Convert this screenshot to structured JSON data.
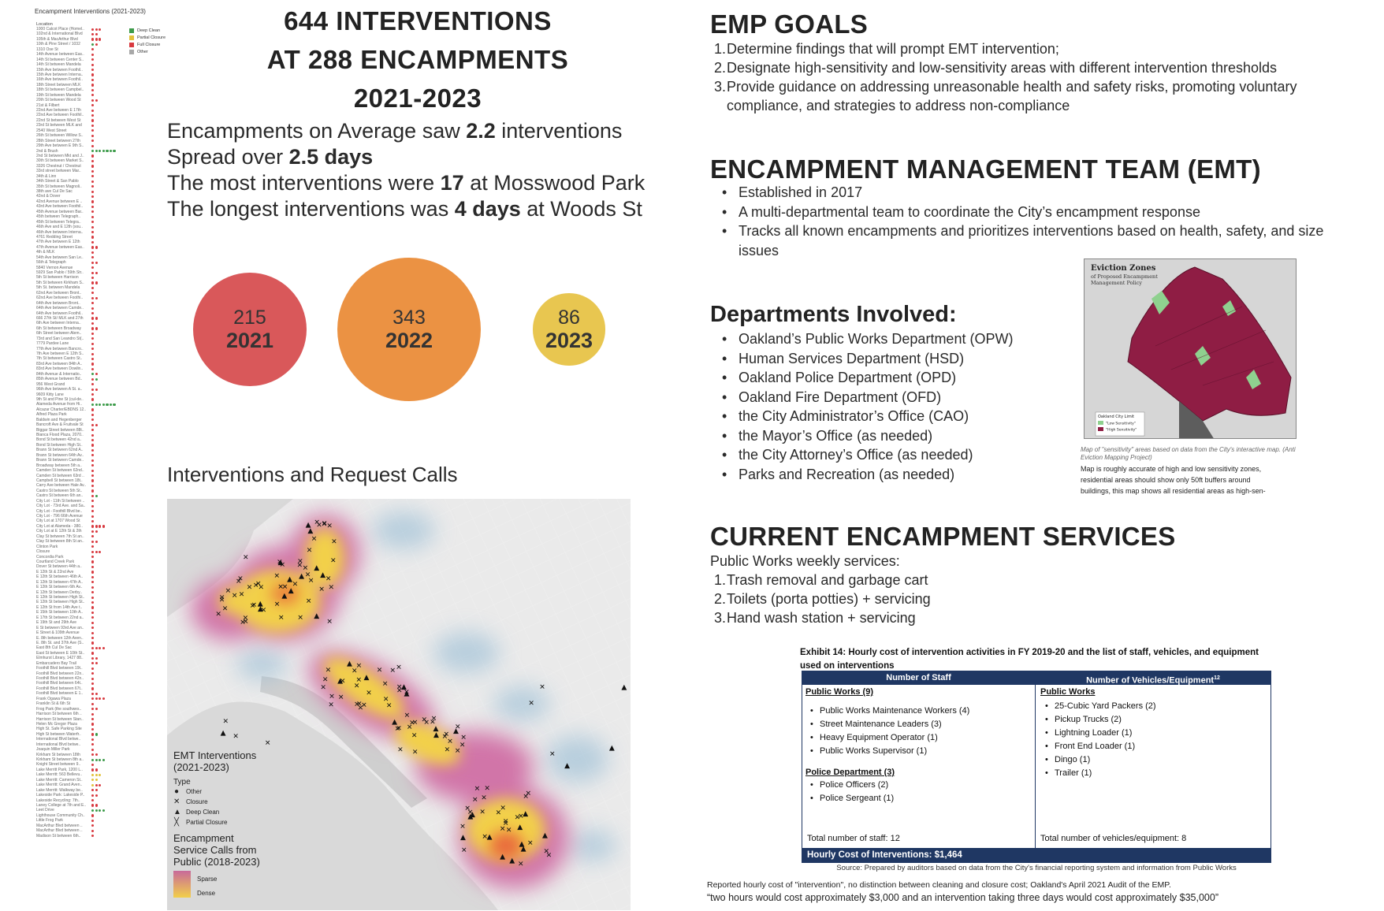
{
  "list_panel": {
    "title": "Encampment Interventions (2021-2023)",
    "column_header": "Location",
    "legend": [
      {
        "label": "Deep Clean",
        "color": "#3d9b4a"
      },
      {
        "label": "Partial Closure",
        "color": "#e2c23a"
      },
      {
        "label": "Full Closure",
        "color": "#d8393f"
      },
      {
        "label": "Other",
        "color": "#a8a8a8"
      }
    ],
    "rows": [
      {
        "name": "1000 Calcot Place (Homel..",
        "dots": "rrr"
      },
      {
        "name": "102nd & International Blvd",
        "dots": "rr"
      },
      {
        "name": "105th & MacArthur Blvd",
        "dots": "rrr"
      },
      {
        "name": "10th & Pine Street / 1032",
        "dots": "gr"
      },
      {
        "name": "1310 Ose St",
        "dots": "r"
      },
      {
        "name": "14th Avenue between Eas..",
        "dots": "r"
      },
      {
        "name": "14th St between Center S..",
        "dots": "r"
      },
      {
        "name": "14th St between Mandela",
        "dots": "r"
      },
      {
        "name": "15th Ave between Foothil..",
        "dots": "r"
      },
      {
        "name": "15th Ave between Interna..",
        "dots": "r"
      },
      {
        "name": "16th Ave between Foothil..",
        "dots": "r"
      },
      {
        "name": "18th Street between MLK",
        "dots": "r"
      },
      {
        "name": "18th St between Campbel..",
        "dots": "r"
      },
      {
        "name": "19th St between Mandela",
        "dots": "r"
      },
      {
        "name": "20th St between Wood St",
        "dots": "rr"
      },
      {
        "name": "21st & Filbert",
        "dots": "r"
      },
      {
        "name": "22nd Ave between E 17th",
        "dots": "r"
      },
      {
        "name": "22nd Ave between Foothil..",
        "dots": "r"
      },
      {
        "name": "22nd St between West St",
        "dots": "r"
      },
      {
        "name": "23rd St between MLK and",
        "dots": "r"
      },
      {
        "name": "2540 West Street",
        "dots": "r"
      },
      {
        "name": "26th St between Willow S..",
        "dots": "r"
      },
      {
        "name": "28th Street between 27th",
        "dots": "r"
      },
      {
        "name": "29th Ave between E 9th S..",
        "dots": "r"
      },
      {
        "name": "2nd & Brush",
        "dots": "ggggggg"
      },
      {
        "name": "2nd St between Mkt and J..",
        "dots": "r"
      },
      {
        "name": "30th St between Market S..",
        "dots": "r"
      },
      {
        "name": "3326 Chestnut / Chestnut",
        "dots": "r"
      },
      {
        "name": "33rd street between Mar..",
        "dots": "r"
      },
      {
        "name": "34th & Linn",
        "dots": "r"
      },
      {
        "name": "34th Street & San Pablo",
        "dots": "r"
      },
      {
        "name": "35th St between Magnoli..",
        "dots": "r"
      },
      {
        "name": "38th ave Cul De Sac",
        "dots": "r"
      },
      {
        "name": "42nd & Dover",
        "dots": "r"
      },
      {
        "name": "42nd Avenue between E ..",
        "dots": "r"
      },
      {
        "name": "43rd Ave between Foothil..",
        "dots": "r"
      },
      {
        "name": "45th Avenue between Bar..",
        "dots": "r"
      },
      {
        "name": "45th between Telegraph..",
        "dots": "r"
      },
      {
        "name": "45th St between Telegra..",
        "dots": "r"
      },
      {
        "name": "46th Ave and E 12th (sou..",
        "dots": "r"
      },
      {
        "name": "46th Ave between Interna..",
        "dots": "r"
      },
      {
        "name": "4761 Redding Street",
        "dots": "r"
      },
      {
        "name": "47th Ave between E 12th",
        "dots": "r"
      },
      {
        "name": "47th Avenue between Eas..",
        "dots": "rr"
      },
      {
        "name": "4th & MLK",
        "dots": "r"
      },
      {
        "name": "54th Ave between San Le..",
        "dots": "r"
      },
      {
        "name": "56th & Telegraph",
        "dots": "rr"
      },
      {
        "name": "5840 Vernon Avenue",
        "dots": "r"
      },
      {
        "name": "5929 San Pablo / 59th Str..",
        "dots": "rr"
      },
      {
        "name": "5th St between Harrison",
        "dots": "r"
      },
      {
        "name": "5th St between Kirkham S..",
        "dots": "rr"
      },
      {
        "name": "5th St. between Mandela",
        "dots": "r"
      },
      {
        "name": "62nd Ave between Bront..",
        "dots": "r"
      },
      {
        "name": "62nd Ave between Foothi..",
        "dots": "rr"
      },
      {
        "name": "64th Ave between Bront..",
        "dots": "r"
      },
      {
        "name": "64th Ave between Camde..",
        "dots": "r"
      },
      {
        "name": "64th Ave between Foothil..",
        "dots": "r"
      },
      {
        "name": "666 27th St/ MLK and 27th",
        "dots": "rr"
      },
      {
        "name": "6th Ave between Interna..",
        "dots": "r"
      },
      {
        "name": "6th St between Broadway",
        "dots": "rr"
      },
      {
        "name": "6th Street between Alem..",
        "dots": "r"
      },
      {
        "name": "73rd and San Leandro St(..",
        "dots": "r"
      },
      {
        "name": "7779 Pardee Lane",
        "dots": "r"
      },
      {
        "name": "77th Ave between Bancro..",
        "dots": "r"
      },
      {
        "name": "7th Ave between E 12th S..",
        "dots": "r"
      },
      {
        "name": "7th St between Castro St..",
        "dots": "r"
      },
      {
        "name": "83rd Ave between 84th A..",
        "dots": "r"
      },
      {
        "name": "83rd Ave between Dowlin..",
        "dots": "r"
      },
      {
        "name": "84th Avenue & Internatio..",
        "dots": "gr"
      },
      {
        "name": "85th Avenue between Bd..",
        "dots": "rg"
      },
      {
        "name": "956 West Grand",
        "dots": "r"
      },
      {
        "name": "96th Ave between A St. a..",
        "dots": "rr"
      },
      {
        "name": "9609 Kitty Lane",
        "dots": "r"
      },
      {
        "name": "9th St and Pine St (cul-de..",
        "dots": "r"
      },
      {
        "name": "Alameda Avenue from Hi..",
        "dots": "ggggggg"
      },
      {
        "name": "Alcazar Charter/EBDNS 12..",
        "dots": "r"
      },
      {
        "name": "Alfred Plaza Park",
        "dots": "r"
      },
      {
        "name": "Baldwin and Hegenberger",
        "dots": "r"
      },
      {
        "name": "Bancroft Ave & Fruitvale St",
        "dots": "rr"
      },
      {
        "name": "Biggar Street between 88t..",
        "dots": "r"
      },
      {
        "name": "Bianca Flood Plaza, 2070..",
        "dots": "r"
      },
      {
        "name": "Bond St between 42nd a..",
        "dots": "r"
      },
      {
        "name": "Bond St between High St..",
        "dots": "r"
      },
      {
        "name": "Brann St between 62nd A..",
        "dots": "r"
      },
      {
        "name": "Brann St between 64th Av..",
        "dots": "r"
      },
      {
        "name": "Brann St between Camde..",
        "dots": "r"
      },
      {
        "name": "Broadway between 5th a..",
        "dots": "r"
      },
      {
        "name": "Camden St between 62nd..",
        "dots": "r"
      },
      {
        "name": "Camden St between 63rd ..",
        "dots": "r"
      },
      {
        "name": "Campbell St between 18t..",
        "dots": "r"
      },
      {
        "name": "Carry Ave between Hale Av..",
        "dots": "r"
      },
      {
        "name": "Castro St between 5th St..",
        "dots": "r"
      },
      {
        "name": "Castro St between 6th an..",
        "dots": "rg"
      },
      {
        "name": "City Lot - 11th St between ..",
        "dots": "r"
      },
      {
        "name": "City Lot - 73rd Ave. and Sa..",
        "dots": "r"
      },
      {
        "name": "City Lot - Foothill Blvd be..",
        "dots": "r"
      },
      {
        "name": "City Lot - 796 66th Avenue",
        "dots": "r"
      },
      {
        "name": "City Lot at 1707 Wood St",
        "dots": "r"
      },
      {
        "name": "City Lot at Alameda - 380..",
        "dots": "rrrr"
      },
      {
        "name": "City Lot at E 12th St & 2th",
        "dots": "rr"
      },
      {
        "name": "Clay St between 7th St an..",
        "dots": "r"
      },
      {
        "name": "Clay St between 8th St an..",
        "dots": "rr"
      },
      {
        "name": "Clinton Park",
        "dots": "r"
      },
      {
        "name": "Closure",
        "dots": "rrr"
      },
      {
        "name": "Concordia Park",
        "dots": "r"
      },
      {
        "name": "Courtland Creek Park",
        "dots": "r"
      },
      {
        "name": "Dover St between 44th a..",
        "dots": "r"
      },
      {
        "name": "E 12th St & 22nd Ave",
        "dots": "r"
      },
      {
        "name": "E 12th St between 46th A..",
        "dots": "r"
      },
      {
        "name": "E 12th St between 47th A..",
        "dots": "r"
      },
      {
        "name": "E 12th St between 6th Av..",
        "dots": "r"
      },
      {
        "name": "E 12th St between Derby..",
        "dots": "r"
      },
      {
        "name": "E 12th St between High St..",
        "dots": "r"
      },
      {
        "name": "E 12th St between High St..",
        "dots": "r"
      },
      {
        "name": "E 12th St from 14th Ave t..",
        "dots": "r"
      },
      {
        "name": "E 15th St between 10th A..",
        "dots": "r"
      },
      {
        "name": "E 17th St between 22nd a..",
        "dots": "r"
      },
      {
        "name": "E 19th St and 29th Ave",
        "dots": "r"
      },
      {
        "name": "E St between 93rd Ave an..",
        "dots": "r"
      },
      {
        "name": "E Street & 109th Avenue",
        "dots": "r"
      },
      {
        "name": "E. 8th between 12th Aven..",
        "dots": "r"
      },
      {
        "name": "E. 8th St. and 37th Ave (S..",
        "dots": "r"
      },
      {
        "name": "East 8th Cul De Sac",
        "dots": "rrrr"
      },
      {
        "name": "East St between E 10th St..",
        "dots": "r"
      },
      {
        "name": "Elmhurst Library, 1427 88..",
        "dots": "rr"
      },
      {
        "name": "Embarcadero Bay Trail",
        "dots": "rr"
      },
      {
        "name": "Foothill Blvd between 19t..",
        "dots": "r"
      },
      {
        "name": "Foothill Blvd between 22n..",
        "dots": "r"
      },
      {
        "name": "Foothill Blvd between 42n..",
        "dots": "r"
      },
      {
        "name": "Foothill Blvd between 64t..",
        "dots": "r"
      },
      {
        "name": "Foothill Blvd between 67t..",
        "dots": "r"
      },
      {
        "name": "Foothill Blvd between E 1..",
        "dots": "rr"
      },
      {
        "name": "Frank Ogawa Plaza",
        "dots": "rrrr"
      },
      {
        "name": "Franklin St & 6th St",
        "dots": "r"
      },
      {
        "name": "Frog Park (the southwes..",
        "dots": "rr"
      },
      {
        "name": "Harrison St between 6th ..",
        "dots": "r"
      },
      {
        "name": "Harrison St between Stan..",
        "dots": "r"
      },
      {
        "name": "Helen Mc Gregor Plaza",
        "dots": "r"
      },
      {
        "name": "High St. Safe Parking Site",
        "dots": "r"
      },
      {
        "name": "High St between Waterfr..",
        "dots": "rg"
      },
      {
        "name": "International Blvd betwe..",
        "dots": "r"
      },
      {
        "name": "International Blvd betwe..",
        "dots": "r"
      },
      {
        "name": "Joaquin Miller Park",
        "dots": "r"
      },
      {
        "name": "Kirkham St between 18th",
        "dots": "rr"
      },
      {
        "name": "Kirkham St between 8th a..",
        "dots": "gggg"
      },
      {
        "name": "Knight Street between 9..",
        "dots": "r"
      },
      {
        "name": "Lake Merritt Park, 1200 L..",
        "dots": "rr"
      },
      {
        "name": "Lake Merritt: 563 Bellevu..",
        "dots": "yyy"
      },
      {
        "name": "Lake Merritt: Cameron St..",
        "dots": "yy"
      },
      {
        "name": "Lake Merritt: Grand Aven..",
        "dots": "yrr"
      },
      {
        "name": "Lake Merritt: Walkway be..",
        "dots": "rr"
      },
      {
        "name": "Lakeside Park: Lakeside P..",
        "dots": "rr"
      },
      {
        "name": "Lakeside Recycling: 7th..",
        "dots": "r"
      },
      {
        "name": "Laney College at 7th and E..",
        "dots": "rr"
      },
      {
        "name": "Leet Drive",
        "dots": "gggg"
      },
      {
        "name": "Lighthouse Community Ch..",
        "dots": "r"
      },
      {
        "name": "Little Frog Park",
        "dots": "r"
      },
      {
        "name": "MacArthur Blvd between ..",
        "dots": "r"
      },
      {
        "name": "MacArthur Blvd between ..",
        "dots": "r"
      },
      {
        "name": "Madison St between 6th..",
        "dots": "r"
      }
    ]
  },
  "headline": {
    "line1": "644 INTERVENTIONS",
    "line2": "AT 288 ENCAMPMENTS",
    "line3": "2021-2023"
  },
  "stats": [
    {
      "pre": "Encampments on Average saw ",
      "bold": "2.2",
      "post": " interventions"
    },
    {
      "pre": "Spread over ",
      "bold": "2.5 days",
      "post": ""
    },
    {
      "pre": "The most interventions were ",
      "bold": "17",
      "post": " at Mosswood Park"
    },
    {
      "pre": "The longest interventions was ",
      "bold": "4 days",
      "post": " at Woods St"
    }
  ],
  "chart_data": {
    "type": "bubble",
    "categories": [
      "2021",
      "2022",
      "2023"
    ],
    "values": [
      215,
      343,
      86
    ],
    "colors": [
      "#d9585a",
      "#eb9243",
      "#e8c650"
    ]
  },
  "map": {
    "title": "Interventions and Request Calls",
    "legend_title_1": "EMT Interventions",
    "legend_title_2": "(2021-2023)",
    "type_label": "Type",
    "types": [
      {
        "symbol": "●",
        "label": "Other"
      },
      {
        "symbol": "✕",
        "label": "Closure"
      },
      {
        "symbol": "▲",
        "label": "Deep Clean"
      },
      {
        "symbol": "╳",
        "label": "Partial Closure"
      }
    ],
    "calls_title_1": "Encampment",
    "calls_title_2": "Service Calls from",
    "calls_title_3": "Public (2018-2023)",
    "sparse_label": "Sparse",
    "dense_label": "Dense"
  },
  "emp_goals": {
    "title": "EMP GOALS",
    "items": [
      {
        "num": "1.",
        "text": "Determine findings that will prompt EMT intervention;"
      },
      {
        "num": "2.",
        "text": "Designate high-sensitivity and low-sensitivity areas with different intervention thresholds"
      },
      {
        "num": "3.",
        "text": "Provide guidance on addressing unreasonable health and safety risks, promoting voluntary compliance, and strategies to address non-compliance"
      }
    ]
  },
  "emt": {
    "title": "ENCAMPMENT MANAGEMENT TEAM (EMT)",
    "bullets": [
      "Established in 2017",
      "A multi-departmental team to coordinate the City’s encampment response",
      "Tracks all known encampments and prioritizes interventions based on health, safety, and size issues"
    ]
  },
  "departments": {
    "title": "Departments Involved:",
    "bullets": [
      "Oakland’s Public Works Department (OPW)",
      "Human Services Department (HSD)",
      "Oakland Police Department (OPD)",
      "Oakland Fire Department (OFD)",
      "the City Administrator’s Office (CAO)",
      "the Mayor’s Office (as needed)",
      "the City Attorney’s Office (as needed)",
      "Parks and Recreation (as needed)"
    ]
  },
  "eviction_map": {
    "title": "Eviction Zones",
    "subtitle_1": "of Proposed Encampment",
    "subtitle_2": "Management Policy",
    "legend_title": "Oakland City Limit",
    "legend_low": "\"Low Sensitivity\"",
    "legend_high": "\"High Sensitivity\"",
    "caption_italic": "Map of \"sensitivity\" areas based on data from the City's interactive map. (Anti Eviction Mapping Project)",
    "caption_1": "Map is roughly accurate of high and low sensitivity zones,",
    "caption_2": "residential areas should show only 50ft buffers around",
    "caption_3": "buildings, this map shows all residential areas as high-sen-",
    "colors": {
      "high": "#8f1d44",
      "low": "#8fd18f"
    }
  },
  "services": {
    "title": "CURRENT ENCAMPMENT SERVICES",
    "intro": "Public Works weekly services:",
    "items": [
      {
        "num": "1.",
        "text": "Trash removal and garbage cart"
      },
      {
        "num": "2.",
        "text": "Toilets (porta potties) + servicing"
      },
      {
        "num": "3.",
        "text": "Hand wash station + servicing"
      }
    ]
  },
  "exhibit": {
    "title": "Exhibit 14: Hourly cost of intervention activities in FY 2019-20 and the list of staff, vehicles, and equipment used on interventions",
    "col1_header": "Number of Staff",
    "col2_header": "Number of Vehicles/Equipment",
    "col2_sup": "12",
    "pw_label": "Public Works (9)",
    "pw_items": [
      "Public Works Maintenance Workers (4)",
      "Street Maintenance Leaders (3)",
      "Heavy Equipment Operator (1)",
      "Public Works Supervisor (1)"
    ],
    "police_label": "Police Department (3)",
    "police_items": [
      "Police Officers (2)",
      "Police Sergeant (1)"
    ],
    "veh_label": "Public Works",
    "veh_items": [
      "25-Cubic Yard Packers (2)",
      "Pickup Trucks (2)",
      "Lightning Loader (1)",
      "Front End Loader (1)",
      "Dingo (1)",
      "Trailer (1)"
    ],
    "total_staff": "Total number of staff: 12",
    "total_vehicles": "Total number of vehicles/equipment: 8",
    "hourly_cost": "Hourly Cost of Interventions: $1,464",
    "source": "Source: Prepared by auditors based on data from the City's financial reporting system and information from Public Works"
  },
  "footnote": "Reported hourly cost of \"intervention\", no distinction between cleaning and closure cost; Oakland's April 2021 Audit of the EMP.",
  "quote": "“two hours would cost approximately $3,000 and an intervention taking three days would cost approximately $35,000”"
}
